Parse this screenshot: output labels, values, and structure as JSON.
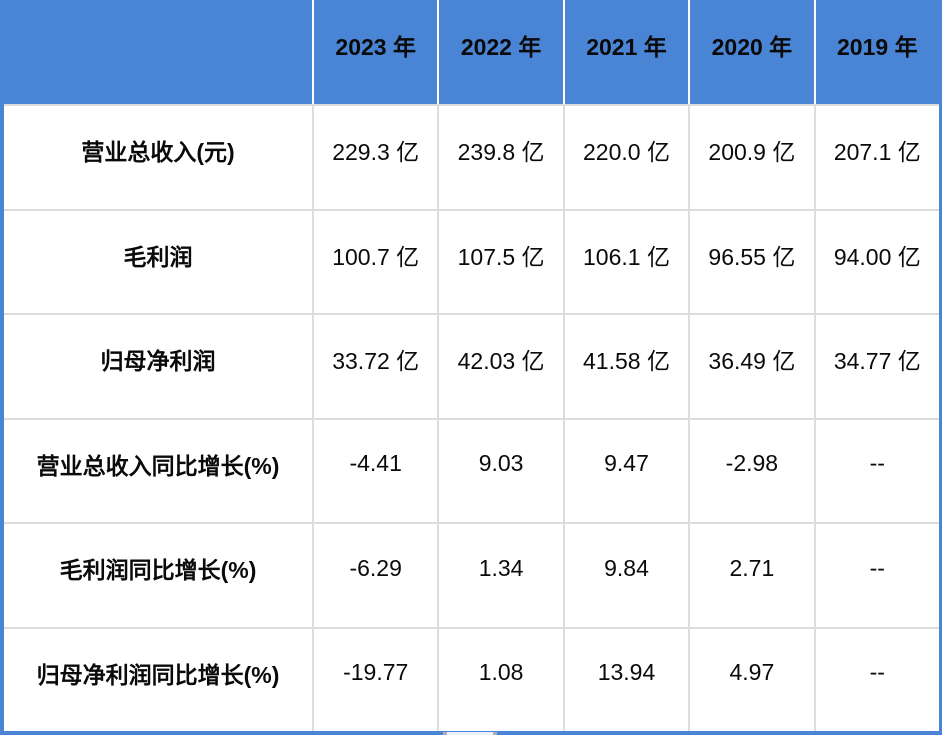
{
  "chart_data": {
    "type": "table",
    "title": "",
    "columns": [
      "",
      "2023 年",
      "2022 年",
      "2021 年",
      "2020 年",
      "2019 年"
    ],
    "categories": [
      "2023",
      "2022",
      "2021",
      "2020",
      "2019"
    ],
    "rows": [
      {
        "label": "营业总收入(元)",
        "cells": [
          "229.3 亿",
          "239.8 亿",
          "220.0 亿",
          "200.9 亿",
          "207.1 亿"
        ]
      },
      {
        "label": "毛利润",
        "cells": [
          "100.7 亿",
          "107.5 亿",
          "106.1 亿",
          "96.55 亿",
          "94.00 亿"
        ]
      },
      {
        "label": "归母净利润",
        "cells": [
          "33.72 亿",
          "42.03 亿",
          "41.58 亿",
          "36.49 亿",
          "34.77 亿"
        ]
      },
      {
        "label": "营业总收入同比增长(%)",
        "cells": [
          "-4.41",
          "9.03",
          "9.47",
          "-2.98",
          "--"
        ]
      },
      {
        "label": "毛利润同比增长(%)",
        "cells": [
          "-6.29",
          "1.34",
          "9.84",
          "2.71",
          "--"
        ]
      },
      {
        "label": "归母净利润同比增长(%)",
        "cells": [
          "-19.77",
          "1.08",
          "13.94",
          "4.97",
          "--"
        ]
      }
    ],
    "series": [
      {
        "name": "营业总收入(元)",
        "unit": "亿",
        "values": [
          229.3,
          239.8,
          220.0,
          200.9,
          207.1
        ]
      },
      {
        "name": "毛利润",
        "unit": "亿",
        "values": [
          100.7,
          107.5,
          106.1,
          96.55,
          94.0
        ]
      },
      {
        "name": "归母净利润",
        "unit": "亿",
        "values": [
          33.72,
          42.03,
          41.58,
          36.49,
          34.77
        ]
      },
      {
        "name": "营业总收入同比增长(%)",
        "unit": "%",
        "values": [
          -4.41,
          9.03,
          9.47,
          -2.98,
          null
        ]
      },
      {
        "name": "毛利润同比增长(%)",
        "unit": "%",
        "values": [
          -6.29,
          1.34,
          9.84,
          2.71,
          null
        ]
      },
      {
        "name": "归母净利润同比增长(%)",
        "unit": "%",
        "values": [
          -19.77,
          1.08,
          13.94,
          4.97,
          null
        ]
      }
    ],
    "legend_position": "none",
    "grid": true
  },
  "colors": {
    "header_bg": "#4a84d4",
    "header_divider": "#ffffff",
    "grid_line": "#dcdcdc",
    "text": "#0a0a0a"
  }
}
